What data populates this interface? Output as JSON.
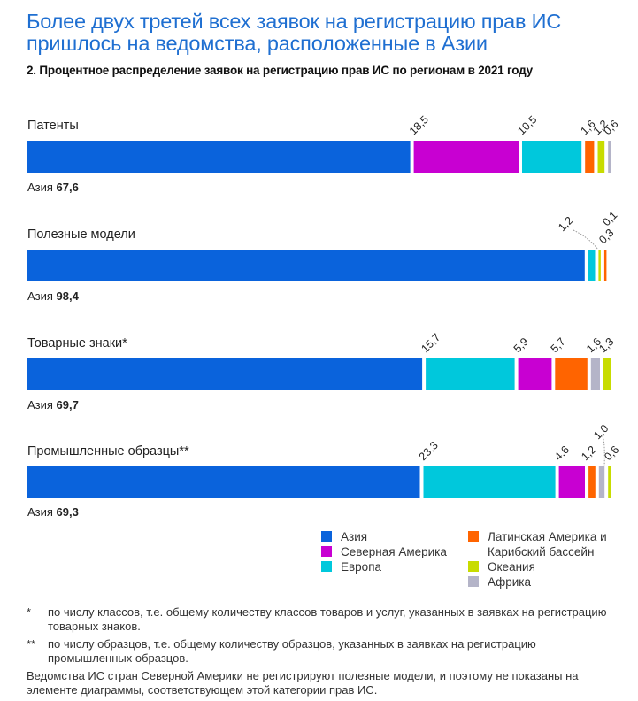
{
  "headline": "Более двух третей всех заявок на регистрацию прав ИС пришлось на ведомства, расположенные в Азии",
  "subtitle": "2. Процентное распределение заявок на регистрацию прав ИС по регионам в 2021 году",
  "colors": {
    "asia": "#0a63dc",
    "north_america": "#c800d2",
    "europe": "#00c8dc",
    "latin_america": "#ff6400",
    "oceania": "#c8dc00",
    "africa": "#b4b4c8"
  },
  "chart_data": {
    "type": "bar",
    "orientation": "horizontal-stacked",
    "title": "2. Процентное распределение заявок на регистрацию прав ИС по регионам в 2021 году",
    "xlabel": "",
    "ylabel": "",
    "xlim": [
      0,
      100
    ],
    "unit": "%",
    "categories": [
      "Патенты",
      "Полезные модели",
      "Товарные знаки*",
      "Промышленные образцы**"
    ],
    "series": [
      {
        "key": "asia",
        "name": "Азия",
        "values": [
          67.6,
          98.4,
          69.7,
          69.3
        ]
      },
      {
        "key": "north_america",
        "name": "Северная Америка",
        "values": [
          18.5,
          null,
          5.9,
          4.6
        ]
      },
      {
        "key": "europe",
        "name": "Европа",
        "values": [
          10.5,
          1.2,
          15.7,
          23.3
        ]
      },
      {
        "key": "latin_america",
        "name": "Латинская Америка и Карибский бассейн",
        "values": [
          1.6,
          0.1,
          5.7,
          1.2
        ]
      },
      {
        "key": "oceania",
        "name": "Океания",
        "values": [
          1.2,
          0.3,
          1.3,
          0.6
        ]
      },
      {
        "key": "africa",
        "name": "Африка",
        "values": [
          0.6,
          null,
          1.6,
          1.0
        ]
      }
    ],
    "segment_order": [
      [
        "asia",
        "north_america",
        "europe",
        "latin_america",
        "oceania",
        "africa"
      ],
      [
        "asia",
        "europe",
        "oceania",
        "latin_america"
      ],
      [
        "asia",
        "europe",
        "north_america",
        "latin_america",
        "africa",
        "oceania"
      ],
      [
        "asia",
        "europe",
        "north_america",
        "latin_america",
        "africa",
        "oceania"
      ]
    ],
    "value_labels": [
      [
        "18,5",
        "10,5",
        "1,6",
        "1,2",
        "0,6"
      ],
      [
        "1,2",
        "0,3",
        "0,1"
      ],
      [
        "15,7",
        "5,9",
        "5,7",
        "1,6",
        "1,3"
      ],
      [
        "23,3",
        "4,6",
        "1,2",
        "1,0",
        "0,6"
      ]
    ],
    "asia_labels": [
      {
        "prefix": "Азия",
        "value": "67,6"
      },
      {
        "prefix": "Азия",
        "value": "98,4"
      },
      {
        "prefix": "Азия",
        "value": "69,7"
      },
      {
        "prefix": "Азия",
        "value": "69,3"
      }
    ],
    "legend": [
      "Азия",
      "Северная Америка",
      "Европа",
      "Латинская Америка и Карибский бассейн",
      "Океания",
      "Африка"
    ],
    "legend_position": "bottom-right",
    "grid": false
  },
  "legend": {
    "items": [
      {
        "key": "asia",
        "label": "Азия"
      },
      {
        "key": "north_america",
        "label": "Северная Америка"
      },
      {
        "key": "europe",
        "label": "Европа"
      },
      {
        "key": "latin_america",
        "label": "Латинская Америка и Карибский бассейн"
      },
      {
        "key": "oceania",
        "label": "Океания"
      },
      {
        "key": "africa",
        "label": "Африка"
      }
    ]
  },
  "notes": [
    {
      "mark": "*",
      "text": "по числу классов, т.е. общему количеству классов товаров и услуг, указанных в заявках на регистрацию товарных знаков."
    },
    {
      "mark": "**",
      "text": "по числу образцов, т.е. общему количеству образцов, указанных в заявках на регистрацию промышленных образцов."
    }
  ],
  "footnote": "Ведомства ИС стран Северной Америки не регистрируют полезные модели, и поэтому не показаны на элементе диаграммы, соответствующем этой категории прав ИС."
}
